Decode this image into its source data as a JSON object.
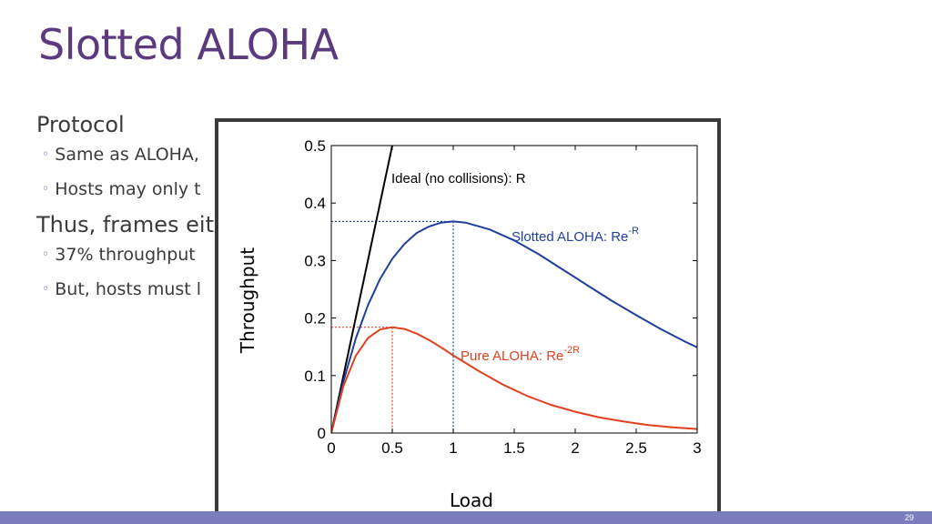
{
  "slide": {
    "title": "Slotted ALOHA",
    "bullets": [
      {
        "level": 1,
        "text": "Protocol"
      },
      {
        "level": 2,
        "text": "Same as ALOHA,"
      },
      {
        "level": 2,
        "text": "Hosts may only t"
      },
      {
        "level": 1,
        "text": "Thus, frames eit"
      },
      {
        "level": 2,
        "text": "37% throughput"
      },
      {
        "level": 2,
        "text": "But, hosts must l"
      }
    ],
    "slide_number": "29",
    "colors": {
      "title": "#5b3a7e",
      "bar": "#7b7dbf"
    }
  },
  "chart_data": {
    "type": "line",
    "xlabel": "Load",
    "ylabel": "Throughput",
    "xlim": [
      0,
      3
    ],
    "ylim": [
      0,
      0.5
    ],
    "xticks": [
      "0",
      "0.5",
      "1",
      "1.5",
      "2",
      "2.5",
      "3"
    ],
    "yticks": [
      "0",
      "0.1",
      "0.2",
      "0.3",
      "0.4",
      "0.5"
    ],
    "grid": false,
    "series": [
      {
        "name_main": "Ideal (no collisions): R",
        "color": "#000000",
        "x": [
          0,
          0.5
        ],
        "y": [
          0,
          0.5
        ]
      },
      {
        "name_main": "Slotted ALOHA: Re",
        "name_sup": "-R",
        "color": "#1f3f9e",
        "x": [
          0,
          0.1,
          0.2,
          0.3,
          0.4,
          0.5,
          0.6,
          0.7,
          0.8,
          0.9,
          1.0,
          1.1,
          1.3,
          1.5,
          1.7,
          1.9,
          2.1,
          2.3,
          2.5,
          2.7,
          2.9,
          3.0
        ],
        "y": [
          0,
          0.09,
          0.164,
          0.222,
          0.268,
          0.303,
          0.329,
          0.348,
          0.359,
          0.366,
          0.368,
          0.366,
          0.354,
          0.335,
          0.311,
          0.284,
          0.257,
          0.23,
          0.205,
          0.181,
          0.159,
          0.149
        ]
      },
      {
        "name_main": "Pure ALOHA: Re",
        "name_sup": "-2R",
        "color": "#e0401e",
        "x": [
          0,
          0.1,
          0.2,
          0.3,
          0.4,
          0.5,
          0.6,
          0.7,
          0.8,
          0.9,
          1.0,
          1.2,
          1.4,
          1.6,
          1.8,
          2.0,
          2.2,
          2.4,
          2.6,
          2.8,
          3.0
        ],
        "y": [
          0,
          0.082,
          0.134,
          0.165,
          0.18,
          0.184,
          0.181,
          0.173,
          0.162,
          0.149,
          0.135,
          0.109,
          0.085,
          0.065,
          0.049,
          0.037,
          0.027,
          0.02,
          0.014,
          0.01,
          0.007
        ]
      }
    ],
    "reference_lines": [
      {
        "color": "#1f3f9e",
        "x": 1.0,
        "y": 0.368
      },
      {
        "color": "#e0401e",
        "x": 0.5,
        "y": 0.184
      }
    ]
  }
}
